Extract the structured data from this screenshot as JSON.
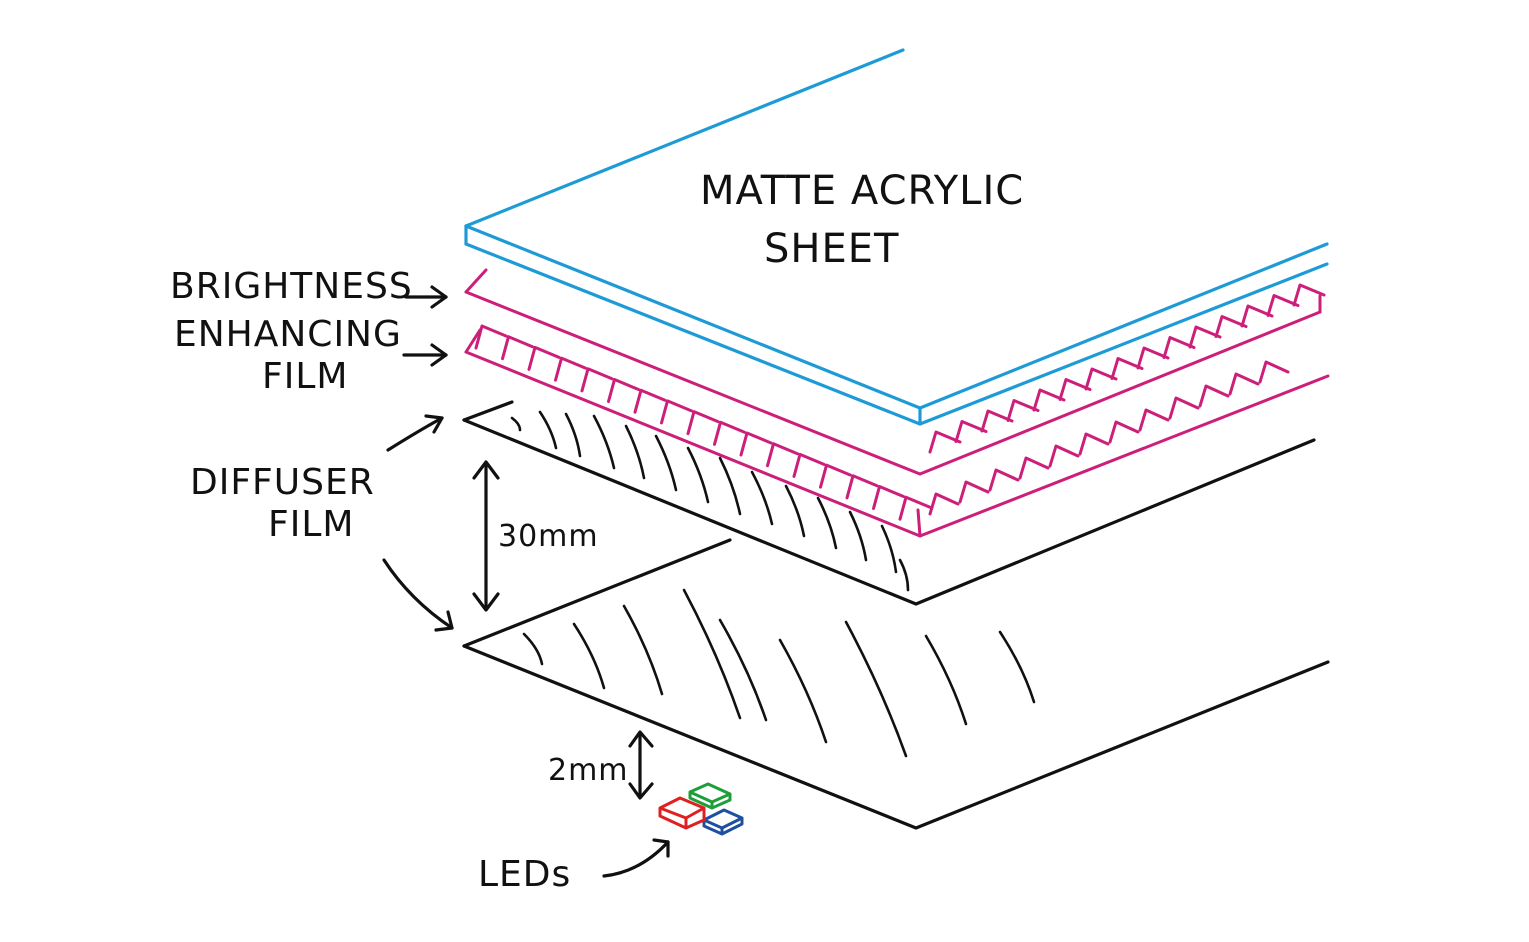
{
  "labels": {
    "top_sheet_line1": "MATTE ACRYLIC",
    "top_sheet_line2": "SHEET",
    "bef_line1": "BRIGHTNESS",
    "bef_line2": "ENHANCING",
    "bef_line3": "FILM",
    "diffuser_line1": "DIFFUSER",
    "diffuser_line2": "FILM",
    "gap_large": "30mm",
    "gap_small": "2mm",
    "leds": "LEDs"
  },
  "colors": {
    "acrylic": "#1e9bd7",
    "bef": "#cc1f7a",
    "outline": "#111111",
    "led_red": "#e02020",
    "led_green": "#1e9e3a",
    "led_blue": "#1f4fa0"
  },
  "icons": [
    "arrow-right-icon",
    "double-arrow-icon",
    "led-icon"
  ]
}
